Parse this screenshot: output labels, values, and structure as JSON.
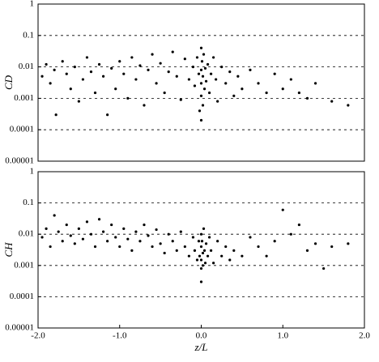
{
  "chart_data": [
    {
      "type": "scatter",
      "ylabel": "CD",
      "color": "#000000",
      "log_scale": true,
      "grid": true,
      "xlim": [
        -2,
        2
      ],
      "ylim": [
        1e-05,
        1
      ],
      "yticks": [
        1,
        0.1,
        0.01,
        0.001,
        0.0001,
        1e-05
      ],
      "x": [
        -1.95,
        -1.9,
        -1.85,
        -1.8,
        -1.78,
        -1.7,
        -1.65,
        -1.6,
        -1.55,
        -1.5,
        -1.45,
        -1.4,
        -1.35,
        -1.3,
        -1.25,
        -1.2,
        -1.15,
        -1.1,
        -1.05,
        -1.0,
        -0.95,
        -0.9,
        -0.85,
        -0.8,
        -0.75,
        -0.7,
        -0.65,
        -0.6,
        -0.55,
        -0.5,
        -0.45,
        -0.4,
        -0.35,
        -0.3,
        -0.25,
        -0.2,
        -0.15,
        -0.1,
        -0.08,
        -0.05,
        -0.03,
        -0.02,
        0,
        0,
        0,
        0,
        0,
        0.01,
        0.02,
        0.02,
        0.03,
        0.04,
        0.05,
        0.06,
        0.08,
        0.1,
        0.12,
        0.15,
        0.18,
        0.2,
        0.25,
        0.3,
        0.35,
        0.4,
        0.45,
        0.5,
        0.6,
        0.7,
        0.8,
        0.9,
        1.0,
        1.1,
        1.2,
        1.3,
        1.4,
        1.6,
        1.8
      ],
      "values": [
        0.005,
        0.012,
        0.003,
        0.008,
        0.0003,
        0.015,
        0.006,
        0.002,
        0.01,
        0.0008,
        0.004,
        0.02,
        0.007,
        0.0015,
        0.012,
        0.005,
        0.0003,
        0.009,
        0.002,
        0.015,
        0.006,
        0.001,
        0.02,
        0.004,
        0.011,
        0.0006,
        0.008,
        0.025,
        0.003,
        0.013,
        0.0015,
        0.007,
        0.03,
        0.005,
        0.0009,
        0.018,
        0.004,
        0.01,
        0.0025,
        0.02,
        0.006,
        0.0004,
        0.04,
        0.008,
        0.003,
        0.0012,
        0.0002,
        0.015,
        0.005,
        0.0006,
        0.025,
        0.002,
        0.009,
        0.0035,
        0.012,
        0.0015,
        0.006,
        0.02,
        0.004,
        0.0008,
        0.01,
        0.003,
        0.007,
        0.0012,
        0.005,
        0.002,
        0.008,
        0.003,
        0.0015,
        0.006,
        0.002,
        0.004,
        0.0015,
        0.001,
        0.003,
        0.0008,
        0.0006
      ]
    },
    {
      "type": "scatter",
      "ylabel": "CH",
      "xlabel": "z/L",
      "color": "#000000",
      "log_scale": true,
      "grid": true,
      "xlim": [
        -2,
        2
      ],
      "ylim": [
        1e-05,
        1
      ],
      "xticks": [
        {
          "value": -2,
          "label": "-2.0"
        },
        {
          "value": -1,
          "label": "-1.0"
        },
        {
          "value": 0,
          "label": "0.0"
        },
        {
          "value": 1,
          "label": "1.0"
        },
        {
          "value": 2,
          "label": "2.0"
        }
      ],
      "yticks": [
        1,
        0.1,
        0.01,
        0.001,
        0.0001,
        1e-05
      ],
      "x": [
        -1.95,
        -1.9,
        -1.85,
        -1.8,
        -1.75,
        -1.7,
        -1.65,
        -1.6,
        -1.55,
        -1.5,
        -1.45,
        -1.4,
        -1.35,
        -1.3,
        -1.25,
        -1.2,
        -1.15,
        -1.1,
        -1.05,
        -1.0,
        -0.95,
        -0.9,
        -0.85,
        -0.8,
        -0.75,
        -0.7,
        -0.65,
        -0.6,
        -0.55,
        -0.5,
        -0.45,
        -0.4,
        -0.35,
        -0.3,
        -0.25,
        -0.2,
        -0.15,
        -0.1,
        -0.08,
        -0.05,
        -0.03,
        -0.02,
        0,
        0,
        0,
        0,
        0,
        0.01,
        0.02,
        0.02,
        0.03,
        0.04,
        0.05,
        0.06,
        0.08,
        0.1,
        0.12,
        0.15,
        0.2,
        0.25,
        0.3,
        0.35,
        0.4,
        0.5,
        0.6,
        0.7,
        0.8,
        0.9,
        1.0,
        1.1,
        1.2,
        1.3,
        1.4,
        1.5,
        1.6,
        1.8
      ],
      "values": [
        0.008,
        0.015,
        0.004,
        0.04,
        0.012,
        0.006,
        0.02,
        0.009,
        0.005,
        0.015,
        0.007,
        0.025,
        0.01,
        0.004,
        0.03,
        0.012,
        0.006,
        0.02,
        0.008,
        0.004,
        0.015,
        0.007,
        0.003,
        0.012,
        0.006,
        0.02,
        0.009,
        0.004,
        0.014,
        0.005,
        0.0025,
        0.01,
        0.006,
        0.003,
        0.012,
        0.004,
        0.002,
        0.008,
        0.003,
        0.0015,
        0.006,
        0.002,
        0.01,
        0.004,
        0.0015,
        0.0008,
        0.0003,
        0.006,
        0.0025,
        0.001,
        0.015,
        0.003,
        0.0012,
        0.005,
        0.002,
        0.008,
        0.003,
        0.0012,
        0.006,
        0.002,
        0.004,
        0.0015,
        0.003,
        0.002,
        0.008,
        0.004,
        0.002,
        0.006,
        0.06,
        0.01,
        0.02,
        0.003,
        0.005,
        0.0008,
        0.004,
        0.005
      ]
    }
  ]
}
